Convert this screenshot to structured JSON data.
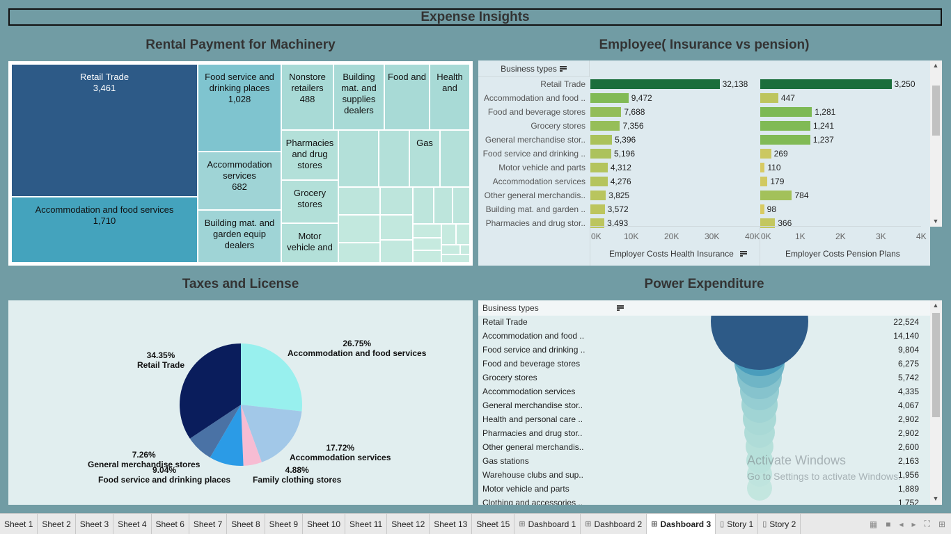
{
  "dashboard_title": "Expense Insights",
  "panels": {
    "treemap_title": "Rental Payment for Machinery",
    "employee_title": "Employee( Insurance vs pension)",
    "taxes_title": "Taxes and License",
    "power_title": "Power Expenditure"
  },
  "treemap": {
    "cells": [
      {
        "label": "Retail Trade",
        "value": "3,461",
        "color": "#2d5a87"
      },
      {
        "label": "Accommodation and food services",
        "value": "1,710",
        "color": "#44a3bd"
      },
      {
        "label": "Food service and drinking places",
        "value": "1,028",
        "color": "#7fc4cf"
      },
      {
        "label": "Accommodation services",
        "value": "682",
        "color": "#9fd4d6"
      },
      {
        "label": "Building mat. and garden equip dealers",
        "value": "",
        "color": "#9fd4d6"
      },
      {
        "label": "Nonstore retailers",
        "value": "488",
        "color": "#a8dad6"
      },
      {
        "label": "Building mat. and supplies dealers",
        "value": "",
        "color": "#a8dad6"
      },
      {
        "label": "Food and",
        "value": "",
        "color": "#a8dad6"
      },
      {
        "label": "Health and",
        "value": "",
        "color": "#a8dad6"
      },
      {
        "label": "Pharmacies and drug stores",
        "value": "",
        "color": "#b3e0d9"
      },
      {
        "label": "Gas",
        "value": "",
        "color": "#b3e0d9"
      },
      {
        "label": "Grocery stores",
        "value": "",
        "color": "#b3e0d9"
      },
      {
        "label": "Motor vehicle and",
        "value": "",
        "color": "#b3e0d9"
      }
    ]
  },
  "employee": {
    "header": "Business types",
    "rows": [
      {
        "label": "Retail Trade",
        "health": "32,138",
        "pension": "3,250"
      },
      {
        "label": "Accommodation and food ..",
        "health": "9,472",
        "pension": "447"
      },
      {
        "label": "Food and beverage stores",
        "health": "7,688",
        "pension": "1,281"
      },
      {
        "label": "Grocery stores",
        "health": "7,356",
        "pension": "1,241"
      },
      {
        "label": "General merchandise stor..",
        "health": "5,396",
        "pension": "1,237"
      },
      {
        "label": "Food service and drinking ..",
        "health": "5,196",
        "pension": "269"
      },
      {
        "label": "Motor vehicle and parts",
        "health": "4,312",
        "pension": "110"
      },
      {
        "label": "Accommodation services",
        "health": "4,276",
        "pension": "179"
      },
      {
        "label": "Other general merchandis..",
        "health": "3,825",
        "pension": "784"
      },
      {
        "label": "Building mat. and garden ..",
        "health": "3,572",
        "pension": "98"
      },
      {
        "label": "Pharmacies and drug stor..",
        "health": "3,493",
        "pension": "366"
      }
    ],
    "health_ticks": [
      "0K",
      "10K",
      "20K",
      "30K",
      "40K"
    ],
    "pension_ticks": [
      "0K",
      "1K",
      "2K",
      "3K",
      "4K"
    ],
    "health_axis_title": "Employer Costs Health Insurance",
    "pension_axis_title": "Employer Costs Pension Plans"
  },
  "pie": {
    "slices": [
      {
        "pct": "26.75%",
        "name": "Accommodation and food services",
        "color": "#98f0ee"
      },
      {
        "pct": "17.72%",
        "name": "Accommodation services",
        "color": "#a2c8e8"
      },
      {
        "pct": "4.88%",
        "name": "Family clothing stores",
        "color": "#f7bcd3"
      },
      {
        "pct": "9.04%",
        "name": "Food service and drinking places",
        "color": "#2b9be6"
      },
      {
        "pct": "7.26%",
        "name": "General merchandise stores",
        "color": "#4a72a5"
      },
      {
        "pct": "34.35%",
        "name": "Retail Trade",
        "color": "#0a1d5c"
      }
    ]
  },
  "power": {
    "header": "Business types",
    "rows": [
      {
        "label": "Retail Trade",
        "value": "22,524"
      },
      {
        "label": "Accommodation and food ..",
        "value": "14,140"
      },
      {
        "label": "Food service and drinking ..",
        "value": "9,804"
      },
      {
        "label": "Food and beverage stores",
        "value": "6,275"
      },
      {
        "label": "Grocery stores",
        "value": "5,742"
      },
      {
        "label": "Accommodation services",
        "value": "4,335"
      },
      {
        "label": "General merchandise stor..",
        "value": "4,067"
      },
      {
        "label": "Health and personal care ..",
        "value": "2,902"
      },
      {
        "label": "Pharmacies and drug stor..",
        "value": "2,902"
      },
      {
        "label": "Other general merchandis..",
        "value": "2,600"
      },
      {
        "label": "Gas stations",
        "value": "2,163"
      },
      {
        "label": "Warehouse clubs and sup..",
        "value": "1,956"
      },
      {
        "label": "Motor vehicle and parts",
        "value": "1,889"
      },
      {
        "label": "Clothing and accessories ..",
        "value": "1,752"
      }
    ]
  },
  "watermark": {
    "line1": "Activate Windows",
    "line2": "Go to Settings to activate Windows."
  },
  "tabs": [
    {
      "label": "Sheet 1",
      "icon": ""
    },
    {
      "label": "Sheet 2",
      "icon": ""
    },
    {
      "label": "Sheet 3",
      "icon": ""
    },
    {
      "label": "Sheet 4",
      "icon": ""
    },
    {
      "label": "Sheet 6",
      "icon": ""
    },
    {
      "label": "Sheet 7",
      "icon": ""
    },
    {
      "label": "Sheet 8",
      "icon": ""
    },
    {
      "label": "Sheet 9",
      "icon": ""
    },
    {
      "label": "Sheet 10",
      "icon": ""
    },
    {
      "label": "Sheet 11",
      "icon": ""
    },
    {
      "label": "Sheet 12",
      "icon": ""
    },
    {
      "label": "Sheet 13",
      "icon": ""
    },
    {
      "label": "Sheet 15",
      "icon": ""
    },
    {
      "label": "Dashboard 1",
      "icon": "dashboard-icon"
    },
    {
      "label": "Dashboard 2",
      "icon": "dashboard-icon"
    },
    {
      "label": "Dashboard 3",
      "icon": "dashboard-icon",
      "active": true
    },
    {
      "label": "Story 1",
      "icon": "story-icon"
    },
    {
      "label": "Story 2",
      "icon": "story-icon"
    }
  ],
  "colors": {
    "background": "#719ca4",
    "health_top_bar": "#1b6e3c",
    "pension_top_bar": "#1b6e3c"
  }
}
